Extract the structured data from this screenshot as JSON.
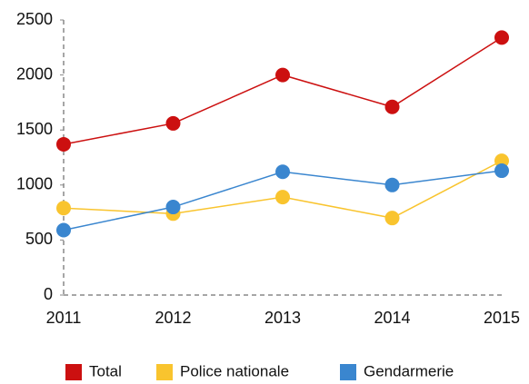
{
  "chart_data": {
    "type": "line",
    "categories": [
      "2011",
      "2012",
      "2013",
      "2014",
      "2015"
    ],
    "series": [
      {
        "name": "Total",
        "color": "#cc1010",
        "values": [
          1370,
          1560,
          2000,
          1710,
          2340
        ]
      },
      {
        "name": "Police nationale",
        "color": "#f9c42e",
        "values": [
          790,
          740,
          890,
          700,
          1220
        ]
      },
      {
        "name": "Gendarmerie",
        "color": "#3a86cf",
        "values": [
          590,
          800,
          1120,
          1000,
          1130
        ]
      }
    ],
    "ylim": [
      0,
      2500
    ],
    "yticks": [
      0,
      500,
      1000,
      1500,
      2000,
      2500
    ],
    "grid": false,
    "legend": "bottom"
  }
}
